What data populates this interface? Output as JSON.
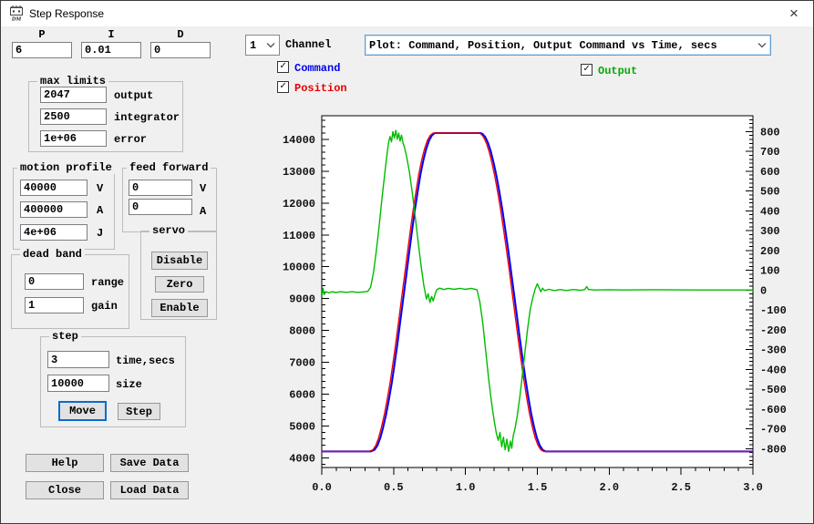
{
  "window": {
    "title": "Step Response"
  },
  "glyphs": {
    "check": "✓",
    "close": "×"
  },
  "pid": {
    "p_label": "P",
    "p_value": "6",
    "i_label": "I",
    "i_value": "0.01",
    "d_label": "D",
    "d_value": "0"
  },
  "channel": {
    "value": "1",
    "label": "Channel"
  },
  "plot_select": {
    "value": "Plot: Command, Position, Output Command vs Time, secs"
  },
  "checkboxes": {
    "command": {
      "label": "Command",
      "checked": true,
      "color": "#0000ee"
    },
    "position": {
      "label": "Position",
      "checked": true,
      "color": "#e80000"
    },
    "output": {
      "label": "Output",
      "checked": true,
      "color": "#00aa00"
    }
  },
  "max_limits": {
    "title": "max limits",
    "rows": [
      {
        "value": "2047",
        "label": "output"
      },
      {
        "value": "2500",
        "label": "integrator"
      },
      {
        "value": "1e+06",
        "label": "error"
      }
    ]
  },
  "motion_profile": {
    "title": "motion profile",
    "rows": [
      {
        "value": "40000",
        "label": "V"
      },
      {
        "value": "400000",
        "label": "A"
      },
      {
        "value": "4e+06",
        "label": "J"
      }
    ]
  },
  "feed_forward": {
    "title": "feed forward",
    "rows": [
      {
        "value": "0",
        "label": "V"
      },
      {
        "value": "0",
        "label": "A"
      }
    ]
  },
  "servo": {
    "title": "servo",
    "buttons": [
      "Disable",
      "Zero",
      "Enable"
    ]
  },
  "dead_band": {
    "title": "dead band",
    "rows": [
      {
        "value": "0",
        "label": "range"
      },
      {
        "value": "1",
        "label": "gain"
      }
    ]
  },
  "step": {
    "title": "step",
    "rows": [
      {
        "value": "3",
        "label": "time,secs"
      },
      {
        "value": "10000",
        "label": "size"
      }
    ],
    "move_label": "Move",
    "step_label": "Step"
  },
  "actions": {
    "help": "Help",
    "save": "Save Data",
    "close": "Close",
    "load": "Load Data"
  },
  "chart_data": {
    "type": "line",
    "title": "",
    "xlabel": "Time, secs",
    "x_axis": {
      "range": [
        0,
        3
      ],
      "tick_step": 0.5,
      "minor_step": 0.1,
      "decimals": 1
    },
    "left_axis": {
      "range": [
        3696,
        14744
      ],
      "tick_start": 4000,
      "tick_end": 14000,
      "tick_step": 1000,
      "minor_step": 200
    },
    "right_axis": {
      "range": [
        -895,
        880
      ],
      "tick_start": -800,
      "tick_end": 800,
      "tick_step": 100,
      "minor_step": 20
    },
    "grid": false,
    "series": [
      {
        "name": "Command",
        "axis": "left",
        "color": "#0000ff",
        "width": 2,
        "points": [
          [
            0,
            4200
          ],
          [
            0.342,
            4200
          ],
          [
            0.367,
            4250
          ],
          [
            0.387,
            4380
          ],
          [
            0.407,
            4620
          ],
          [
            0.427,
            4950
          ],
          [
            0.447,
            5350
          ],
          [
            0.467,
            5820
          ],
          [
            0.487,
            6350
          ],
          [
            0.507,
            6950
          ],
          [
            0.527,
            7600
          ],
          [
            0.547,
            8300
          ],
          [
            0.567,
            9000
          ],
          [
            0.587,
            9700
          ],
          [
            0.607,
            10400
          ],
          [
            0.627,
            11100
          ],
          [
            0.647,
            11750
          ],
          [
            0.667,
            12350
          ],
          [
            0.687,
            12900
          ],
          [
            0.707,
            13350
          ],
          [
            0.727,
            13700
          ],
          [
            0.747,
            13970
          ],
          [
            0.767,
            14130
          ],
          [
            0.787,
            14200
          ],
          [
            1.102,
            14200
          ],
          [
            1.117,
            14180
          ],
          [
            1.137,
            14080
          ],
          [
            1.157,
            13890
          ],
          [
            1.177,
            13610
          ],
          [
            1.197,
            13250
          ],
          [
            1.217,
            12820
          ],
          [
            1.237,
            12330
          ],
          [
            1.257,
            11780
          ],
          [
            1.277,
            11180
          ],
          [
            1.297,
            10540
          ],
          [
            1.317,
            9870
          ],
          [
            1.337,
            9180
          ],
          [
            1.357,
            8480
          ],
          [
            1.377,
            7790
          ],
          [
            1.397,
            7120
          ],
          [
            1.417,
            6490
          ],
          [
            1.437,
            5910
          ],
          [
            1.457,
            5400
          ],
          [
            1.477,
            4970
          ],
          [
            1.497,
            4630
          ],
          [
            1.517,
            4390
          ],
          [
            1.537,
            4250
          ],
          [
            1.557,
            4200
          ],
          [
            3,
            4200
          ]
        ]
      },
      {
        "name": "Position",
        "axis": "left",
        "color": "#ee0000",
        "width": 1.4,
        "points": [
          [
            0,
            4200
          ],
          [
            0.33,
            4200
          ],
          [
            0.355,
            4250
          ],
          [
            0.375,
            4380
          ],
          [
            0.395,
            4620
          ],
          [
            0.415,
            4950
          ],
          [
            0.435,
            5350
          ],
          [
            0.455,
            5820
          ],
          [
            0.475,
            6350
          ],
          [
            0.495,
            6950
          ],
          [
            0.515,
            7600
          ],
          [
            0.535,
            8300
          ],
          [
            0.555,
            9000
          ],
          [
            0.575,
            9700
          ],
          [
            0.595,
            10400
          ],
          [
            0.615,
            11100
          ],
          [
            0.635,
            11750
          ],
          [
            0.655,
            12350
          ],
          [
            0.675,
            12900
          ],
          [
            0.695,
            13350
          ],
          [
            0.715,
            13700
          ],
          [
            0.735,
            13970
          ],
          [
            0.755,
            14130
          ],
          [
            0.775,
            14200
          ],
          [
            1.09,
            14200
          ],
          [
            1.105,
            14180
          ],
          [
            1.125,
            14080
          ],
          [
            1.145,
            13890
          ],
          [
            1.165,
            13610
          ],
          [
            1.185,
            13250
          ],
          [
            1.205,
            12820
          ],
          [
            1.225,
            12330
          ],
          [
            1.245,
            11780
          ],
          [
            1.265,
            11180
          ],
          [
            1.285,
            10540
          ],
          [
            1.305,
            9870
          ],
          [
            1.325,
            9180
          ],
          [
            1.345,
            8480
          ],
          [
            1.365,
            7790
          ],
          [
            1.385,
            7120
          ],
          [
            1.405,
            6490
          ],
          [
            1.425,
            5910
          ],
          [
            1.445,
            5400
          ],
          [
            1.465,
            4970
          ],
          [
            1.485,
            4630
          ],
          [
            1.505,
            4390
          ],
          [
            1.525,
            4250
          ],
          [
            1.545,
            4200
          ],
          [
            3,
            4200
          ]
        ]
      },
      {
        "name": "Output",
        "axis": "right",
        "color": "#00bb00",
        "width": 1.4,
        "points": [
          [
            0,
            -30
          ],
          [
            0.008,
            10
          ],
          [
            0.016,
            -22
          ],
          [
            0.03,
            -8
          ],
          [
            0.05,
            -14
          ],
          [
            0.07,
            -8
          ],
          [
            0.1,
            -12
          ],
          [
            0.13,
            -8
          ],
          [
            0.17,
            -11
          ],
          [
            0.21,
            -8
          ],
          [
            0.25,
            -11
          ],
          [
            0.29,
            -9
          ],
          [
            0.32,
            -6
          ],
          [
            0.34,
            15
          ],
          [
            0.36,
            90
          ],
          [
            0.38,
            200
          ],
          [
            0.4,
            330
          ],
          [
            0.42,
            470
          ],
          [
            0.44,
            600
          ],
          [
            0.455,
            690
          ],
          [
            0.465,
            745
          ],
          [
            0.475,
            775
          ],
          [
            0.485,
            748
          ],
          [
            0.495,
            800
          ],
          [
            0.505,
            768
          ],
          [
            0.515,
            806
          ],
          [
            0.525,
            762
          ],
          [
            0.535,
            792
          ],
          [
            0.545,
            752
          ],
          [
            0.555,
            782
          ],
          [
            0.565,
            742
          ],
          [
            0.575,
            722
          ],
          [
            0.59,
            675
          ],
          [
            0.61,
            595
          ],
          [
            0.63,
            492
          ],
          [
            0.65,
            372
          ],
          [
            0.67,
            248
          ],
          [
            0.69,
            128
          ],
          [
            0.71,
            25
          ],
          [
            0.728,
            -45
          ],
          [
            0.74,
            -18
          ],
          [
            0.752,
            -62
          ],
          [
            0.764,
            -32
          ],
          [
            0.776,
            -55
          ],
          [
            0.788,
            -22
          ],
          [
            0.8,
            2
          ],
          [
            0.82,
            10
          ],
          [
            0.85,
            3
          ],
          [
            0.88,
            9
          ],
          [
            0.92,
            4
          ],
          [
            0.96,
            9
          ],
          [
            1,
            4
          ],
          [
            1.04,
            9
          ],
          [
            1.08,
            2
          ],
          [
            1.1,
            -60
          ],
          [
            1.12,
            -165
          ],
          [
            1.14,
            -300
          ],
          [
            1.16,
            -440
          ],
          [
            1.18,
            -560
          ],
          [
            1.2,
            -660
          ],
          [
            1.215,
            -725
          ],
          [
            1.228,
            -758
          ],
          [
            1.24,
            -718
          ],
          [
            1.252,
            -790
          ],
          [
            1.264,
            -742
          ],
          [
            1.276,
            -806
          ],
          [
            1.288,
            -752
          ],
          [
            1.3,
            -814
          ],
          [
            1.312,
            -762
          ],
          [
            1.322,
            -798
          ],
          [
            1.332,
            -736
          ],
          [
            1.344,
            -700
          ],
          [
            1.36,
            -636
          ],
          [
            1.378,
            -538
          ],
          [
            1.396,
            -428
          ],
          [
            1.414,
            -312
          ],
          [
            1.432,
            -196
          ],
          [
            1.45,
            -100
          ],
          [
            1.468,
            -38
          ],
          [
            1.486,
            8
          ],
          [
            1.5,
            32
          ],
          [
            1.512,
            12
          ],
          [
            1.524,
            -8
          ],
          [
            1.536,
            10
          ],
          [
            1.55,
            -2
          ],
          [
            1.58,
            4
          ],
          [
            1.62,
            -2
          ],
          [
            1.66,
            3
          ],
          [
            1.7,
            -2
          ],
          [
            1.75,
            3
          ],
          [
            1.8,
            -1
          ],
          [
            1.83,
            3
          ],
          [
            1.843,
            18
          ],
          [
            1.856,
            3
          ],
          [
            1.9,
            1
          ],
          [
            2,
            2
          ],
          [
            2.1,
            1
          ],
          [
            2.3,
            2
          ],
          [
            2.6,
            1
          ],
          [
            3,
            1
          ]
        ]
      }
    ]
  }
}
